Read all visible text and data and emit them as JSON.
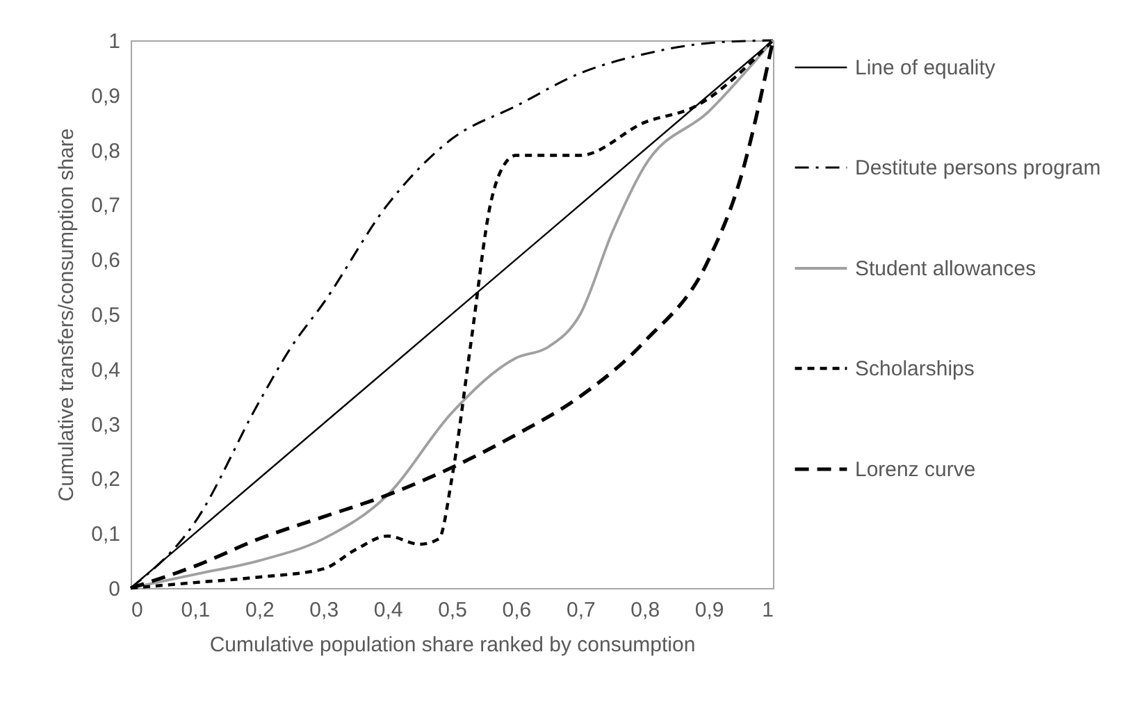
{
  "chart_data": {
    "type": "line",
    "xlabel": "Cumulative population share ranked by consumption",
    "ylabel": "Cumulative transfers/consumption share",
    "xlim": [
      0,
      1
    ],
    "ylim": [
      0,
      1
    ],
    "xticks": [
      0,
      {
        "value": 0.1,
        "label": "0,1"
      },
      {
        "value": 0.2,
        "label": "0,2"
      },
      {
        "value": 0.3,
        "label": "0,3"
      },
      {
        "value": 0.4,
        "label": "0,4"
      },
      {
        "value": 0.5,
        "label": "0,5"
      },
      {
        "value": 0.6,
        "label": "0,6"
      },
      {
        "value": 0.7,
        "label": "0,7"
      },
      {
        "value": 0.8,
        "label": "0,8"
      },
      {
        "value": 0.9,
        "label": "0,9"
      },
      1
    ],
    "yticks": [
      0,
      {
        "value": 0.1,
        "label": "0,1"
      },
      {
        "value": 0.2,
        "label": "0,2"
      },
      {
        "value": 0.3,
        "label": "0,3"
      },
      {
        "value": 0.4,
        "label": "0,4"
      },
      {
        "value": 0.5,
        "label": "0,5"
      },
      {
        "value": 0.6,
        "label": "0,6"
      },
      {
        "value": 0.7,
        "label": "0,7"
      },
      {
        "value": 0.8,
        "label": "0,8"
      },
      {
        "value": 0.9,
        "label": "0,9"
      },
      1
    ],
    "legend": "right",
    "marker": "none",
    "series": [
      {
        "name": "Line of equality",
        "color": "#000000",
        "line_style": "solid",
        "x": [
          0,
          1
        ],
        "values": [
          0,
          1
        ]
      },
      {
        "name": "Destitute persons program",
        "color": "#000000",
        "line_style": "dashdot",
        "x": [
          0,
          0.1,
          0.2,
          0.25,
          0.3,
          0.4,
          0.5,
          0.6,
          0.7,
          0.8,
          0.9,
          1
        ],
        "values": [
          0,
          0.12,
          0.34,
          0.44,
          0.52,
          0.7,
          0.82,
          0.88,
          0.94,
          0.975,
          0.995,
          1
        ]
      },
      {
        "name": "Student allowances",
        "color": "#a0a0a0",
        "line_style": "solid",
        "x": [
          0,
          0.1,
          0.2,
          0.3,
          0.4,
          0.5,
          0.6,
          0.65,
          0.7,
          0.75,
          0.8,
          0.9,
          1
        ],
        "values": [
          0,
          0.025,
          0.05,
          0.09,
          0.17,
          0.32,
          0.42,
          0.44,
          0.5,
          0.65,
          0.77,
          0.87,
          1
        ]
      },
      {
        "name": "Scholarships",
        "color": "#000000",
        "line_style": "dotted",
        "x": [
          0,
          0.1,
          0.2,
          0.3,
          0.35,
          0.4,
          0.45,
          0.48,
          0.5,
          0.53,
          0.56,
          0.58,
          0.6,
          0.7,
          0.8,
          0.88,
          1
        ],
        "values": [
          0,
          0.01,
          0.02,
          0.035,
          0.07,
          0.095,
          0.08,
          0.09,
          0.2,
          0.45,
          0.7,
          0.77,
          0.79,
          0.79,
          0.85,
          0.88,
          1
        ]
      },
      {
        "name": "Lorenz curve",
        "color": "#000000",
        "line_style": "dashed",
        "x": [
          0,
          0.1,
          0.2,
          0.3,
          0.4,
          0.5,
          0.6,
          0.7,
          0.8,
          0.9,
          0.95,
          1
        ],
        "values": [
          0,
          0.04,
          0.09,
          0.13,
          0.17,
          0.22,
          0.28,
          0.35,
          0.45,
          0.6,
          0.75,
          1
        ]
      }
    ]
  }
}
